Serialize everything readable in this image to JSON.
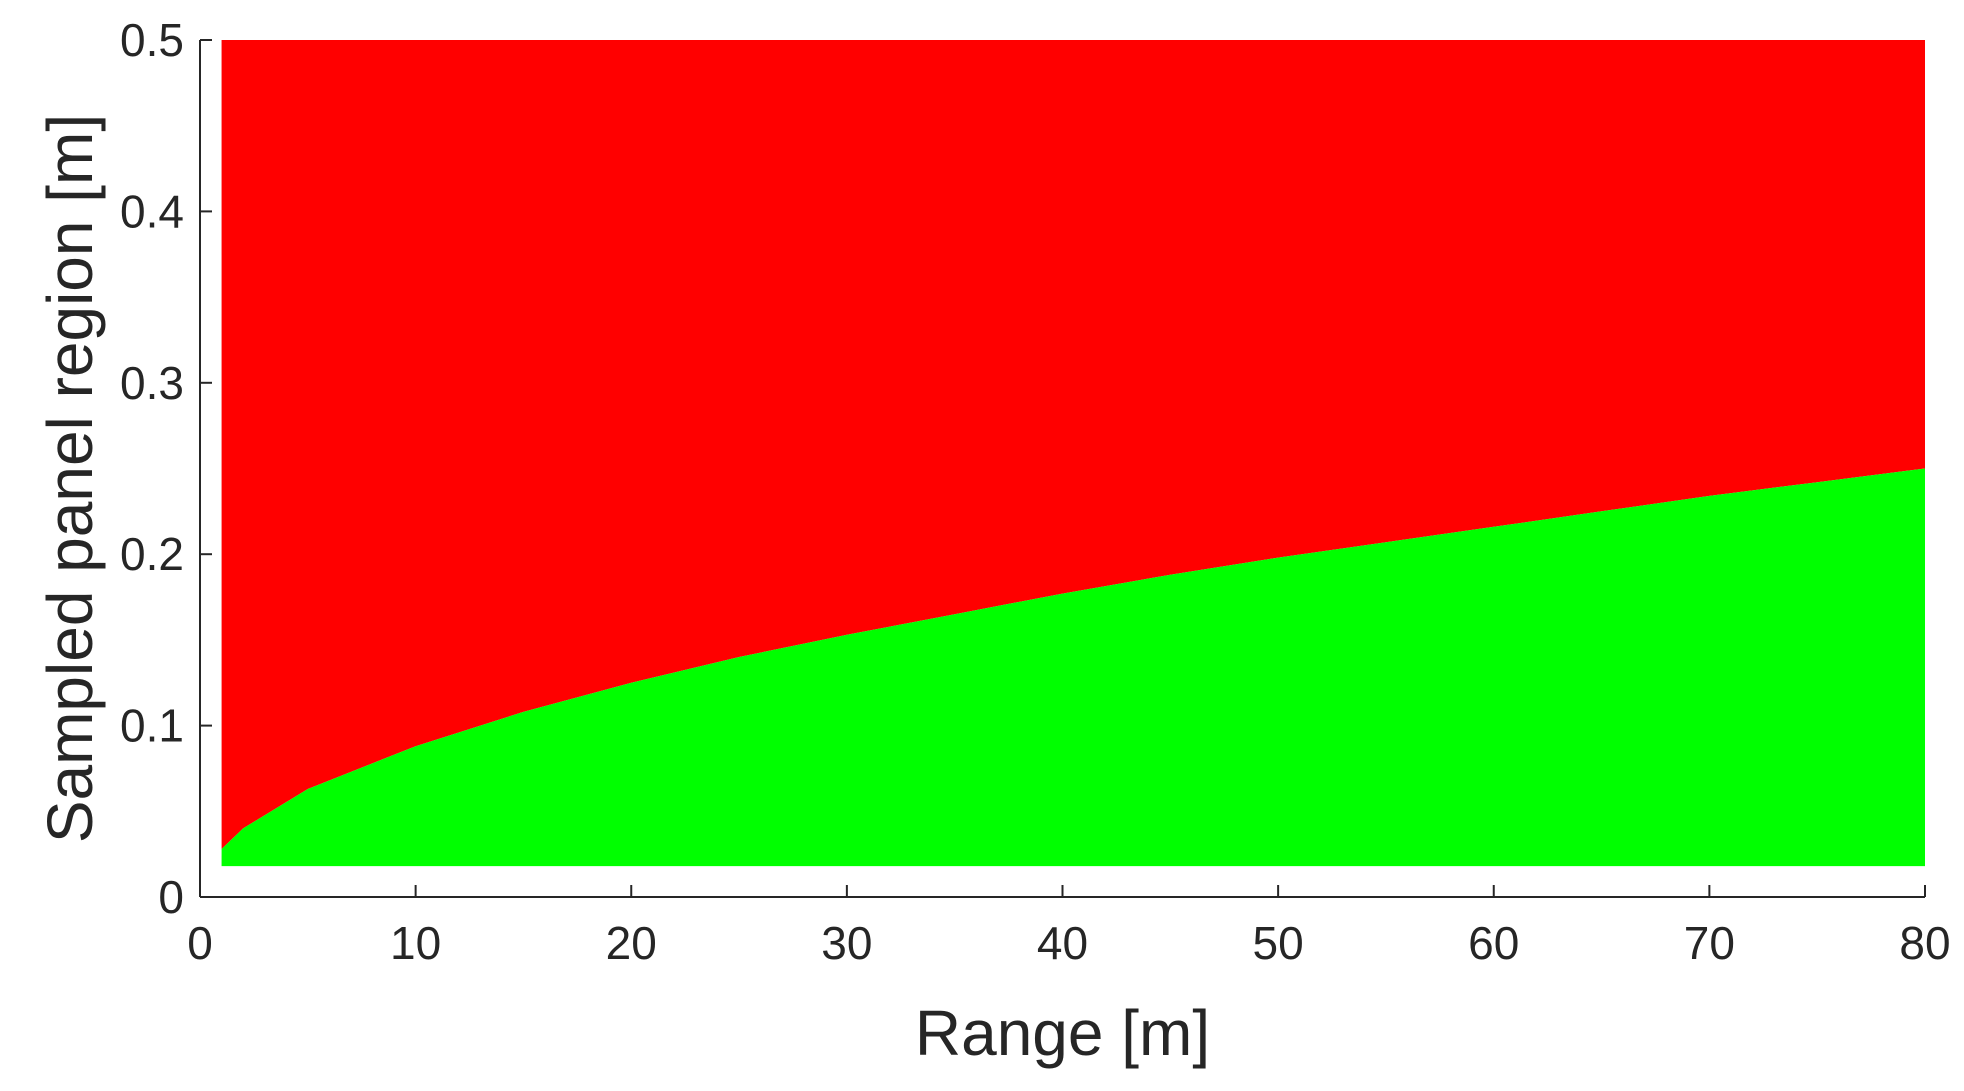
{
  "chart_data": {
    "type": "area",
    "title": "",
    "xlabel": "Range [m]",
    "ylabel": "Sampled panel region [m]",
    "xlim": [
      0,
      80
    ],
    "ylim": [
      0,
      0.5
    ],
    "xticks": [
      0,
      10,
      20,
      30,
      40,
      50,
      60,
      70,
      80
    ],
    "xtick_labels": [
      "0",
      "10",
      "20",
      "30",
      "40",
      "50",
      "60",
      "70",
      "80"
    ],
    "yticks": [
      0,
      0.1,
      0.2,
      0.3,
      0.4,
      0.5
    ],
    "ytick_labels": [
      "0",
      "0.1",
      "0.2",
      "0.3",
      "0.4",
      "0.5"
    ],
    "grid": false,
    "legend": "none",
    "region_x_range": [
      1,
      80
    ],
    "region_y_range": [
      0.018,
      0.5
    ],
    "boundary": {
      "x": [
        1,
        2,
        5,
        10,
        15,
        20,
        25,
        30,
        35,
        40,
        45,
        50,
        55,
        60,
        65,
        70,
        75,
        80
      ],
      "y": [
        0.028,
        0.04,
        0.063,
        0.088,
        0.108,
        0.125,
        0.14,
        0.153,
        0.165,
        0.177,
        0.188,
        0.198,
        0.207,
        0.216,
        0.225,
        0.234,
        0.242,
        0.25
      ]
    },
    "regions": [
      {
        "position": "above boundary",
        "color": "#ff0000"
      },
      {
        "position": "below boundary",
        "color": "#00ff00"
      }
    ],
    "axis_color": "#262626"
  }
}
